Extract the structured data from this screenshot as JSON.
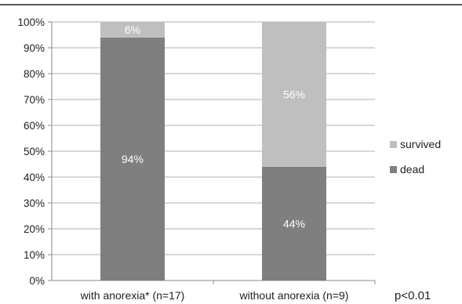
{
  "chart_data": {
    "type": "bar",
    "stacked": true,
    "percent": true,
    "categories": [
      "with anorexia* (n=17)",
      "without anorexia (n=9)"
    ],
    "series": [
      {
        "name": "dead",
        "values": [
          94,
          44
        ],
        "labels": [
          "94%",
          "44%"
        ],
        "color": "#7f7f7f"
      },
      {
        "name": "survived",
        "values": [
          6,
          56
        ],
        "labels": [
          "6%",
          "56%"
        ],
        "color": "#bfbfbf"
      }
    ],
    "ylim": [
      0,
      100
    ],
    "yticks": [
      "0%",
      "10%",
      "20%",
      "30%",
      "40%",
      "50%",
      "60%",
      "70%",
      "80%",
      "90%",
      "100%"
    ],
    "grid": true,
    "legend": {
      "placement": "right",
      "entries_order": [
        "survived",
        "dead"
      ]
    },
    "annotation": "p<0.01",
    "colors": {
      "gridline": "#b0b0b0",
      "axis": "#888888",
      "top_border": "#222222"
    }
  }
}
